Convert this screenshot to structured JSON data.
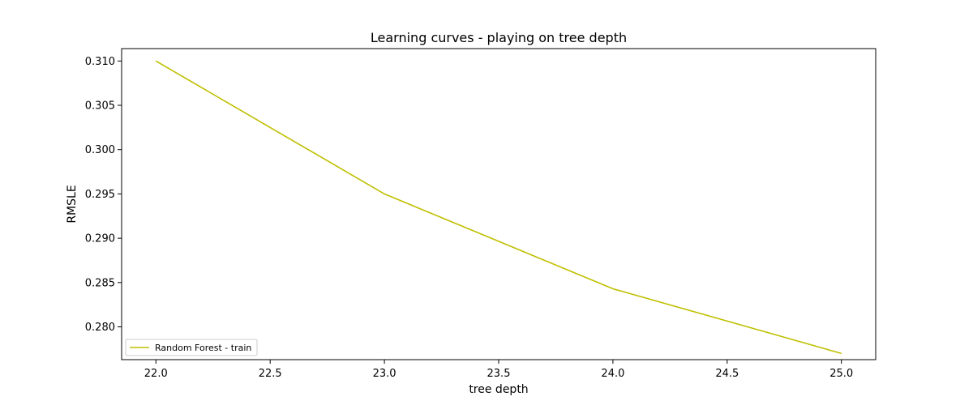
{
  "chart_data": {
    "type": "line",
    "title": "Learning curves - playing on tree depth",
    "xlabel": "tree depth",
    "ylabel": "RMSLE",
    "xlim": [
      21.85,
      25.15
    ],
    "ylim": [
      0.2763,
      0.3114
    ],
    "xticks": [
      22.0,
      22.5,
      23.0,
      23.5,
      24.0,
      24.5,
      25.0
    ],
    "xtick_labels": [
      "22.0",
      "22.5",
      "23.0",
      "23.5",
      "24.0",
      "24.5",
      "25.0"
    ],
    "yticks": [
      0.28,
      0.285,
      0.29,
      0.295,
      0.3,
      0.305,
      0.31
    ],
    "ytick_labels": [
      "0.280",
      "0.285",
      "0.290",
      "0.295",
      "0.300",
      "0.305",
      "0.310"
    ],
    "grid": false,
    "legend_position": "lower-left",
    "series": [
      {
        "name": "Random Forest - train",
        "color": "#bfbf00",
        "x": [
          22,
          23,
          24,
          25
        ],
        "y": [
          0.31,
          0.295,
          0.2843,
          0.277
        ]
      }
    ]
  }
}
